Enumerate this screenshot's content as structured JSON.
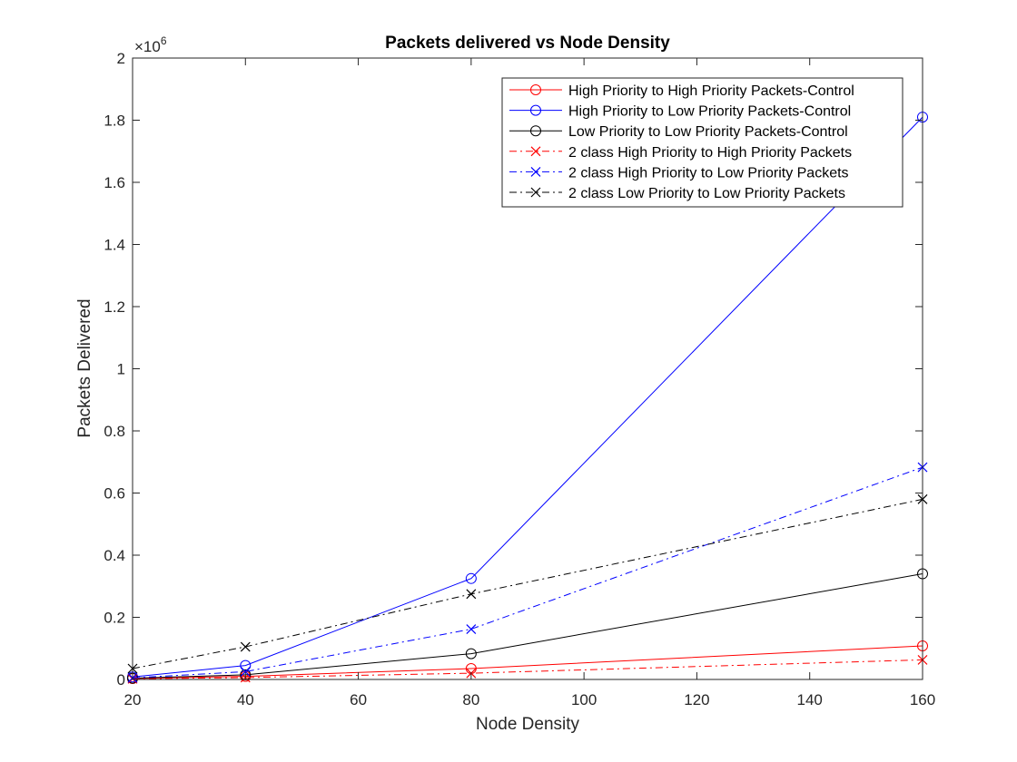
{
  "chart_data": {
    "type": "line",
    "title": "Packets delivered vs Node Density",
    "xlabel": "Node Density",
    "ylabel": "Packets Delivered",
    "y_multiplier": "×10",
    "y_exponent": "6",
    "xlim": [
      20,
      160
    ],
    "ylim": [
      0,
      2
    ],
    "xticks": [
      "20",
      "40",
      "60",
      "80",
      "100",
      "120",
      "140",
      "160"
    ],
    "yticks": [
      "0",
      "0.2",
      "0.4",
      "0.6",
      "0.8",
      "1",
      "1.2",
      "1.4",
      "1.6",
      "1.8",
      "2"
    ],
    "grid": false,
    "legend_position": "top-right",
    "x": [
      20,
      40,
      80,
      160
    ],
    "series": [
      {
        "name": "High Priority to High Priority Packets-Control",
        "color": "#ff0000",
        "linestyle": "solid",
        "marker": "circle",
        "values": [
          0.003,
          0.01,
          0.035,
          0.108
        ]
      },
      {
        "name": "High Priority to Low Priority Packets-Control",
        "color": "#0000ff",
        "linestyle": "solid",
        "marker": "circle",
        "values": [
          0.008,
          0.045,
          0.325,
          1.81
        ]
      },
      {
        "name": "Low Priority to Low Priority Packets-Control",
        "color": "#000000",
        "linestyle": "solid",
        "marker": "circle",
        "values": [
          0.004,
          0.015,
          0.083,
          0.34
        ]
      },
      {
        "name": "2 class High Priority to High Priority Packets",
        "color": "#ff0000",
        "linestyle": "dashdot",
        "marker": "x",
        "values": [
          0.002,
          0.006,
          0.02,
          0.063
        ]
      },
      {
        "name": "2 class High Priority to Low Priority Packets",
        "color": "#0000ff",
        "linestyle": "dashdot",
        "marker": "x",
        "values": [
          0.005,
          0.025,
          0.162,
          0.683
        ]
      },
      {
        "name": "2 class Low Priority to Low Priority Packets",
        "color": "#000000",
        "linestyle": "dashdot",
        "marker": "x",
        "values": [
          0.035,
          0.105,
          0.275,
          0.58
        ]
      }
    ]
  }
}
